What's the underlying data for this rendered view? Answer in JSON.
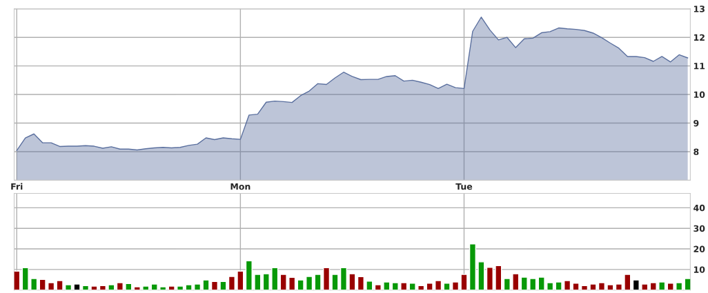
{
  "chart_data": [
    {
      "type": "area",
      "color": "#5a6f9e",
      "categories": [
        "Fri",
        null,
        null,
        null,
        null,
        null,
        null,
        null,
        null,
        null,
        null,
        null,
        null,
        null,
        null,
        null,
        null,
        null,
        null,
        null,
        null,
        null,
        null,
        null,
        null,
        null,
        "Mon",
        null,
        null,
        null,
        null,
        null,
        null,
        null,
        null,
        null,
        null,
        null,
        null,
        null,
        null,
        null,
        null,
        null,
        null,
        null,
        null,
        null,
        null,
        null,
        null,
        null,
        "Tue",
        null,
        null,
        null,
        null,
        null,
        null,
        null,
        null,
        null,
        null,
        null,
        null,
        null,
        null,
        null,
        null,
        null,
        null,
        null,
        null,
        null,
        null,
        null,
        null,
        null,
        null
      ],
      "values": [
        8.04,
        8.48,
        8.62,
        8.31,
        8.31,
        8.18,
        8.19,
        8.19,
        8.21,
        8.19,
        8.12,
        8.17,
        8.09,
        8.09,
        8.06,
        8.1,
        8.13,
        8.15,
        8.13,
        8.15,
        8.22,
        8.26,
        8.48,
        8.42,
        8.48,
        8.45,
        8.43,
        9.28,
        9.31,
        9.73,
        9.77,
        9.75,
        9.72,
        9.96,
        10.12,
        10.38,
        10.35,
        10.58,
        10.78,
        10.63,
        10.52,
        10.53,
        10.53,
        10.63,
        10.66,
        10.47,
        10.5,
        10.43,
        10.35,
        10.21,
        10.36,
        10.24,
        10.21,
        12.21,
        12.71,
        12.26,
        11.91,
        12.0,
        11.64,
        11.95,
        11.97,
        12.16,
        12.2,
        12.33,
        12.3,
        12.28,
        12.24,
        12.15,
        11.99,
        11.8,
        11.62,
        11.33,
        11.33,
        11.29,
        11.16,
        11.33,
        11.14,
        11.39,
        11.28
      ],
      "ylim": [
        7,
        13
      ],
      "yticks": [
        8,
        9,
        10,
        11,
        12,
        13
      ],
      "grid": true
    },
    {
      "type": "bar",
      "categories": [
        null,
        null,
        null,
        null,
        null,
        null,
        null,
        null,
        null,
        null,
        null,
        null,
        null,
        null,
        null,
        null,
        null,
        null,
        null,
        null,
        null,
        null,
        null,
        null,
        null,
        null,
        null,
        null,
        null,
        null,
        null,
        null,
        null,
        null,
        null,
        null,
        null,
        null,
        null,
        null,
        null,
        null,
        null,
        null,
        null,
        null,
        null,
        null,
        null,
        null,
        null,
        null,
        null,
        null,
        null,
        null,
        null,
        null,
        null,
        null,
        null,
        null,
        null,
        null,
        null,
        null,
        null,
        null,
        null,
        null,
        null,
        null,
        null,
        null,
        null,
        null,
        null,
        null,
        null
      ],
      "values": [
        9.2,
        10.9,
        5.6,
        5.2,
        3.6,
        4.6,
        2.6,
        2.9,
        2.2,
        1.9,
        2.2,
        2.6,
        3.6,
        3.2,
        1.6,
        1.9,
        2.9,
        1.6,
        1.9,
        1.9,
        2.6,
        2.9,
        4.9,
        4.2,
        4.2,
        6.6,
        9.2,
        14.2,
        7.6,
        7.9,
        10.9,
        7.6,
        6.2,
        4.9,
        6.6,
        7.6,
        10.9,
        7.6,
        10.9,
        7.9,
        6.5,
        4.3,
        2.6,
        3.9,
        3.6,
        3.6,
        3.3,
        2.2,
        3.3,
        4.6,
        3.3,
        3.9,
        7.6,
        22.4,
        13.7,
        11.0,
        11.9,
        5.6,
        7.9,
        6.3,
        5.6,
        6.3,
        3.6,
        3.9,
        4.6,
        3.3,
        2.2,
        2.9,
        3.6,
        2.6,
        2.9,
        7.6,
        4.9,
        2.9,
        3.6,
        3.9,
        3.3,
        3.6,
        5.6
      ],
      "colors": [
        "#990000",
        "#089908",
        "#089908",
        "#990000",
        "#990000",
        "#990000",
        "#089908",
        "#000000",
        "#089908",
        "#990000",
        "#990000",
        "#089908",
        "#990000",
        "#089908",
        "#990000",
        "#089908",
        "#089908",
        "#089908",
        "#990000",
        "#089908",
        "#089908",
        "#089908",
        "#089908",
        "#990000",
        "#089908",
        "#990000",
        "#990000",
        "#089908",
        "#089908",
        "#089908",
        "#089908",
        "#990000",
        "#990000",
        "#089908",
        "#089908",
        "#089908",
        "#990000",
        "#089908",
        "#089908",
        "#990000",
        "#990000",
        "#089908",
        "#990000",
        "#089908",
        "#089908",
        "#990000",
        "#089908",
        "#990000",
        "#990000",
        "#990000",
        "#089908",
        "#990000",
        "#990000",
        "#089908",
        "#089908",
        "#990000",
        "#990000",
        "#089908",
        "#990000",
        "#089908",
        "#089908",
        "#089908",
        "#089908",
        "#089908",
        "#990000",
        "#990000",
        "#990000",
        "#990000",
        "#990000",
        "#990000",
        "#990000",
        "#990000",
        "#000000",
        "#990000",
        "#990000",
        "#089908",
        "#990000",
        "#089908",
        "#089908"
      ],
      "ylim": [
        0,
        47
      ],
      "yticks": [
        10,
        20,
        30,
        40
      ],
      "grid": true,
      "tick_labels": "y"
    }
  ]
}
